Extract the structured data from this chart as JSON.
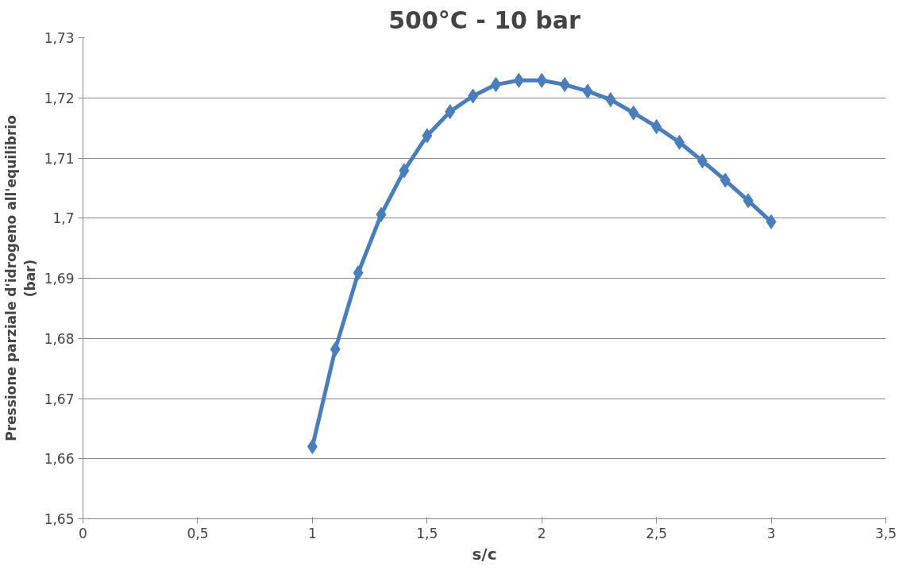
{
  "chart_data": {
    "type": "line",
    "title": "500°C - 10 bar",
    "xlabel": "s/c",
    "ylabel": "Pressione parziale d'idrogeno all'equilibrio\n(bar)",
    "x": [
      1.0,
      1.1,
      1.2,
      1.3,
      1.4,
      1.5,
      1.6,
      1.7,
      1.8,
      1.9,
      2.0,
      2.1,
      2.2,
      2.3,
      2.4,
      2.5,
      2.6,
      2.7,
      2.8,
      2.9,
      3.0
    ],
    "series": [
      {
        "color": "#4a7ebb",
        "values": [
          1.662,
          1.6782,
          1.6909,
          1.7006,
          1.7079,
          1.7137,
          1.7177,
          1.7203,
          1.7222,
          1.7229,
          1.7229,
          1.7222,
          1.7211,
          1.7197,
          1.7175,
          1.7152,
          1.7126,
          1.7095,
          1.7063,
          1.7029,
          1.6994
        ]
      }
    ],
    "xlim": [
      0,
      3.5
    ],
    "xticks": [
      0,
      {
        "value": 0.5,
        "label": "0,5"
      },
      1,
      {
        "value": 1.5,
        "label": "1,5"
      },
      2,
      {
        "value": 2.5,
        "label": "2,5"
      },
      3,
      {
        "value": 3.5,
        "label": "3,5"
      }
    ],
    "ylim": [
      1.65,
      1.73
    ],
    "yticks": [
      {
        "value": 1.65,
        "label": "1,65"
      },
      {
        "value": 1.66,
        "label": "1,66"
      },
      {
        "value": 1.67,
        "label": "1,67"
      },
      {
        "value": 1.68,
        "label": "1,68"
      },
      {
        "value": 1.69,
        "label": "1,69"
      },
      {
        "value": 1.7,
        "label": "1,7"
      },
      {
        "value": 1.71,
        "label": "1,71"
      },
      {
        "value": 1.72,
        "label": "1,72"
      },
      {
        "value": 1.73,
        "label": "1,73"
      }
    ],
    "grid": "y",
    "marker": "diamond",
    "line_style": "solid"
  }
}
